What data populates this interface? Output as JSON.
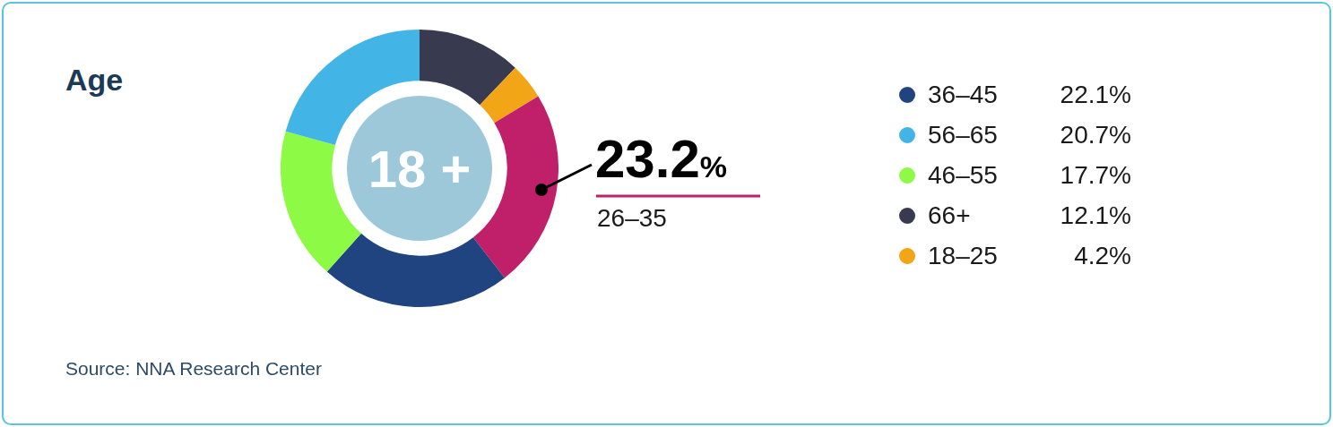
{
  "chart_data": {
    "type": "doughnut",
    "title": "Age",
    "center_label": "18 +",
    "categories": [
      "66+",
      "18–25",
      "26–35",
      "36–45",
      "46–55",
      "56–65"
    ],
    "values": [
      12.1,
      4.2,
      23.2,
      22.1,
      17.7,
      20.7
    ],
    "value_labels": [
      "12.1%",
      "4.2%",
      "23.2%",
      "22.1%",
      "17.7%",
      "20.7%"
    ],
    "colors": [
      "#383a4f",
      "#f2a516",
      "#c0206a",
      "#1f4480",
      "#8dfa46",
      "#42b4e6"
    ],
    "highlight": "26–35",
    "source": "Source: NNA Research Center"
  }
}
